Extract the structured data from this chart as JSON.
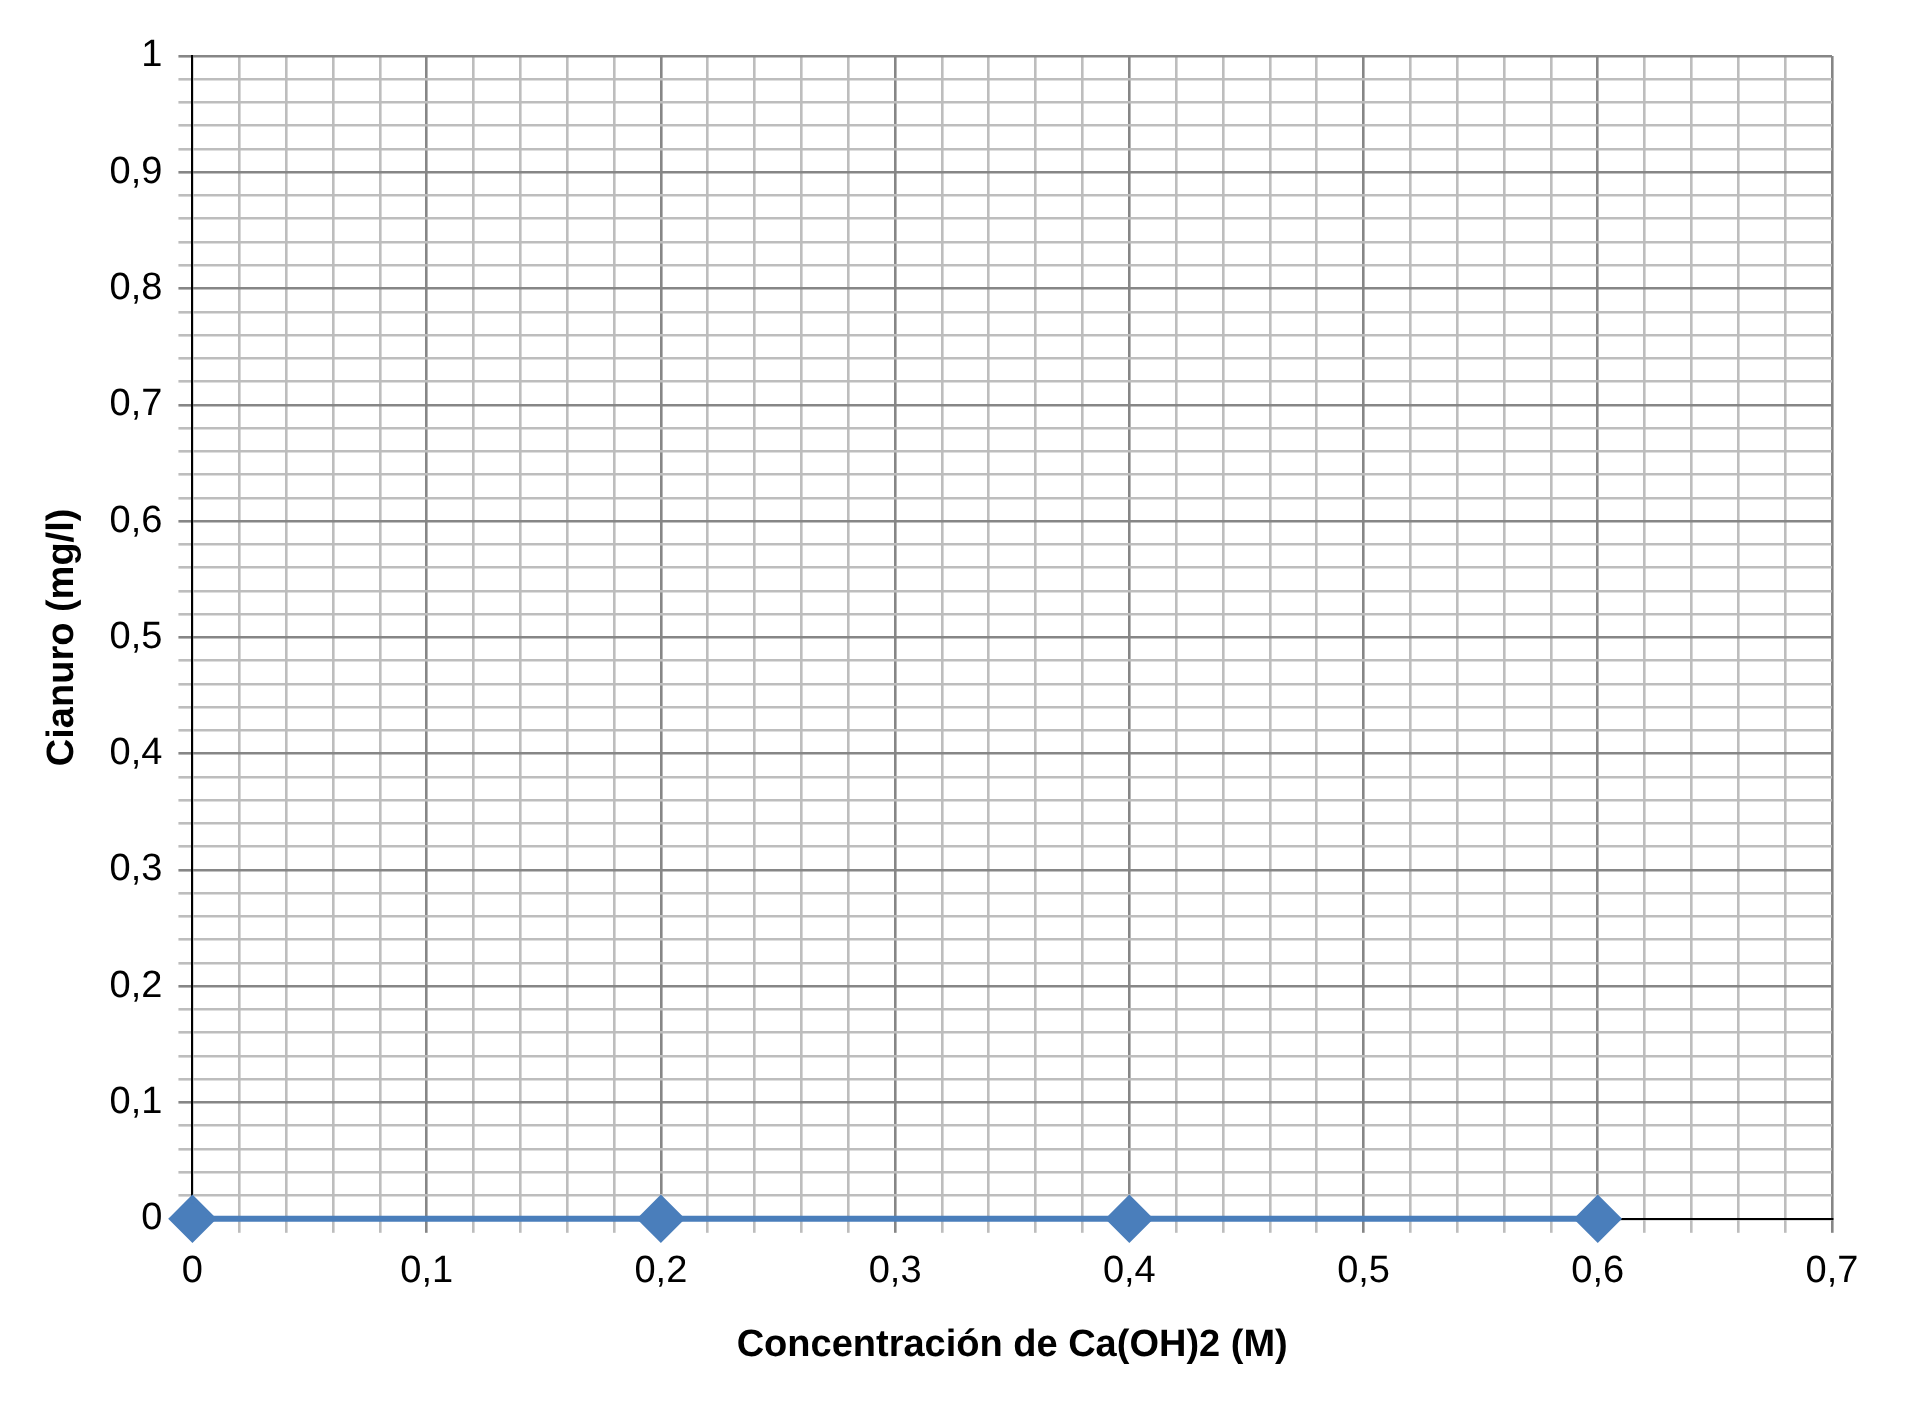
{
  "chart_data": {
    "type": "line",
    "xlabel": "Concentración de Ca(OH)2 (M)",
    "ylabel": "Cianuro (mg/l)",
    "x": [
      0,
      0.2,
      0.4,
      0.6
    ],
    "series": [
      {
        "color": "#4a7ebb",
        "values": [
          0,
          0,
          0,
          0
        ]
      }
    ],
    "xlim": [
      0,
      0.7
    ],
    "ylim": [
      0,
      1
    ],
    "xticks": [
      0,
      {
        "value": 0.02,
        "label": null
      },
      {
        "value": 0.04,
        "label": null
      },
      {
        "value": 0.06,
        "label": null
      },
      {
        "value": 0.08,
        "label": null
      },
      {
        "value": 0.1,
        "label": "0,1"
      },
      {
        "value": 0.12,
        "label": null
      },
      {
        "value": 0.14,
        "label": null
      },
      {
        "value": 0.16,
        "label": null
      },
      {
        "value": 0.18,
        "label": null
      },
      {
        "value": 0.2,
        "label": "0,2"
      },
      {
        "value": 0.22,
        "label": null
      },
      {
        "value": 0.24,
        "label": null
      },
      {
        "value": 0.26,
        "label": null
      },
      {
        "value": 0.28,
        "label": null
      },
      {
        "value": 0.3,
        "label": "0,3"
      },
      {
        "value": 0.32,
        "label": null
      },
      {
        "value": 0.34,
        "label": null
      },
      {
        "value": 0.36,
        "label": null
      },
      {
        "value": 0.38,
        "label": null
      },
      {
        "value": 0.4,
        "label": "0,4"
      },
      {
        "value": 0.42,
        "label": null
      },
      {
        "value": 0.44,
        "label": null
      },
      {
        "value": 0.46,
        "label": null
      },
      {
        "value": 0.48,
        "label": null
      },
      {
        "value": 0.5,
        "label": "0,5"
      },
      {
        "value": 0.52,
        "label": null
      },
      {
        "value": 0.54,
        "label": null
      },
      {
        "value": 0.56,
        "label": null
      },
      {
        "value": 0.58,
        "label": null
      },
      {
        "value": 0.6,
        "label": "0,6"
      },
      {
        "value": 0.62,
        "label": null
      },
      {
        "value": 0.64,
        "label": null
      },
      {
        "value": 0.66,
        "label": null
      },
      {
        "value": 0.68,
        "label": null
      },
      {
        "value": 0.7,
        "label": "0,7"
      }
    ],
    "yticks": [
      0,
      {
        "value": 0.02,
        "label": null
      },
      {
        "value": 0.04,
        "label": null
      },
      {
        "value": 0.06,
        "label": null
      },
      {
        "value": 0.08,
        "label": null
      },
      {
        "value": 0.1,
        "label": "0,1"
      },
      {
        "value": 0.12,
        "label": null
      },
      {
        "value": 0.14,
        "label": null
      },
      {
        "value": 0.16,
        "label": null
      },
      {
        "value": 0.18,
        "label": null
      },
      {
        "value": 0.2,
        "label": "0,2"
      },
      {
        "value": 0.22,
        "label": null
      },
      {
        "value": 0.24,
        "label": null
      },
      {
        "value": 0.26,
        "label": null
      },
      {
        "value": 0.28,
        "label": null
      },
      {
        "value": 0.3,
        "label": "0,3"
      },
      {
        "value": 0.32,
        "label": null
      },
      {
        "value": 0.34,
        "label": null
      },
      {
        "value": 0.36,
        "label": null
      },
      {
        "value": 0.38,
        "label": null
      },
      {
        "value": 0.4,
        "label": "0,4"
      },
      {
        "value": 0.42,
        "label": null
      },
      {
        "value": 0.44,
        "label": null
      },
      {
        "value": 0.46,
        "label": null
      },
      {
        "value": 0.48,
        "label": null
      },
      {
        "value": 0.5,
        "label": "0,5"
      },
      {
        "value": 0.52,
        "label": null
      },
      {
        "value": 0.54,
        "label": null
      },
      {
        "value": 0.56,
        "label": null
      },
      {
        "value": 0.58,
        "label": null
      },
      {
        "value": 0.6,
        "label": "0,6"
      },
      {
        "value": 0.62,
        "label": null
      },
      {
        "value": 0.64,
        "label": null
      },
      {
        "value": 0.66,
        "label": null
      },
      {
        "value": 0.68,
        "label": null
      },
      {
        "value": 0.7,
        "label": "0,7"
      },
      {
        "value": 0.72,
        "label": null
      },
      {
        "value": 0.74,
        "label": null
      },
      {
        "value": 0.76,
        "label": null
      },
      {
        "value": 0.78,
        "label": null
      },
      {
        "value": 0.8,
        "label": "0,8"
      },
      {
        "value": 0.82,
        "label": null
      },
      {
        "value": 0.84,
        "label": null
      },
      {
        "value": 0.86,
        "label": null
      },
      {
        "value": 0.88,
        "label": null
      },
      {
        "value": 0.9,
        "label": "0,9"
      },
      {
        "value": 0.92,
        "label": null
      },
      {
        "value": 0.94,
        "label": null
      },
      {
        "value": 0.96,
        "label": null
      },
      {
        "value": 0.98,
        "label": null
      },
      1
    ],
    "grid": true,
    "marker": "diamond",
    "line_style": "solid"
  }
}
